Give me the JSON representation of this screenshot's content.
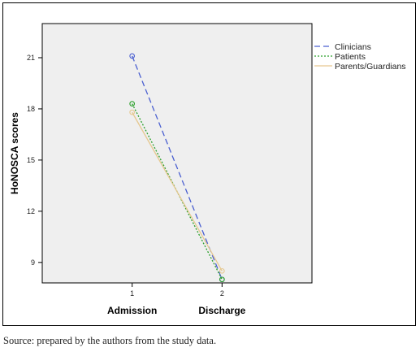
{
  "chart_data": {
    "type": "line",
    "ylabel": "HoNOSCA scores",
    "xlabel": "",
    "x": [
      1,
      2
    ],
    "x_tick_labels": [
      "1",
      "2"
    ],
    "categories": [
      "Admission",
      "Discharge"
    ],
    "ylim": [
      7.8,
      23
    ],
    "y_ticks": [
      9,
      12,
      15,
      18,
      21
    ],
    "grid": false,
    "legend_position": "right",
    "series": [
      {
        "name": "Clinicians",
        "values": [
          21.1,
          8.0
        ],
        "color": "#4a5fd0",
        "style": "dashed"
      },
      {
        "name": "Patients",
        "values": [
          18.3,
          8.0
        ],
        "color": "#2ca02c",
        "style": "dotted"
      },
      {
        "name": "Parents/Guardians",
        "values": [
          17.8,
          8.5
        ],
        "color": "#e6c890",
        "style": "solid"
      }
    ]
  },
  "source_note": "Source: prepared by the authors from the study data.",
  "colors": {
    "plot_background": "#efefef",
    "frame": "#000000"
  }
}
